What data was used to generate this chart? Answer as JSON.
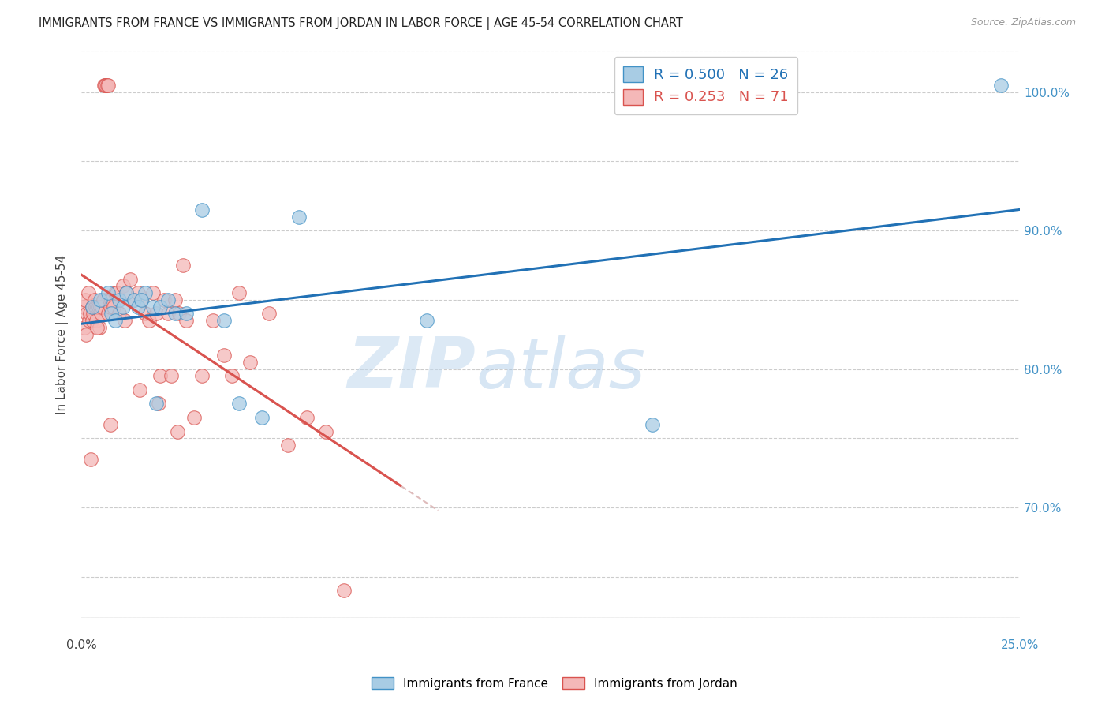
{
  "title": "IMMIGRANTS FROM FRANCE VS IMMIGRANTS FROM JORDAN IN LABOR FORCE | AGE 45-54 CORRELATION CHART",
  "source": "Source: ZipAtlas.com",
  "ylabel": "In Labor Force | Age 45-54",
  "legend_france": "R = 0.500   N = 26",
  "legend_jordan": "R = 0.253   N = 71",
  "legend_label_france": "Immigrants from France",
  "legend_label_jordan": "Immigrants from Jordan",
  "france_color": "#a8cce4",
  "jordan_color": "#f4b8b8",
  "france_edge": "#4292c6",
  "jordan_edge": "#d9534f",
  "france_trend_color": "#2171b5",
  "jordan_trend_color": "#d9534f",
  "dashed_color": "#d9b0b0",
  "watermark_color": "#cce0f0",
  "right_tick_color": "#4292c6",
  "xlim": [
    0,
    25
  ],
  "ylim": [
    62,
    103
  ],
  "france_x": [
    0.3,
    0.5,
    0.7,
    0.8,
    0.9,
    1.0,
    1.1,
    1.2,
    1.4,
    1.5,
    1.7,
    1.9,
    2.1,
    2.3,
    2.5,
    3.2,
    4.2,
    4.8,
    5.8,
    9.2,
    15.2,
    24.5,
    2.8,
    3.8,
    1.6,
    2.0
  ],
  "france_y": [
    84.5,
    85.0,
    85.5,
    84.0,
    83.5,
    85.0,
    84.5,
    85.5,
    85.0,
    84.5,
    85.5,
    84.5,
    84.5,
    85.0,
    84.0,
    91.5,
    77.5,
    76.5,
    91.0,
    83.5,
    76.0,
    100.5,
    84.0,
    83.5,
    85.0,
    77.5
  ],
  "jordan_x": [
    0.05,
    0.08,
    0.1,
    0.15,
    0.18,
    0.2,
    0.22,
    0.25,
    0.28,
    0.3,
    0.32,
    0.35,
    0.38,
    0.4,
    0.42,
    0.45,
    0.48,
    0.5,
    0.52,
    0.55,
    0.58,
    0.6,
    0.62,
    0.65,
    0.68,
    0.7,
    0.72,
    0.75,
    0.78,
    0.8,
    0.85,
    0.9,
    0.95,
    1.0,
    1.1,
    1.2,
    1.3,
    1.4,
    1.5,
    1.6,
    1.7,
    1.8,
    1.9,
    2.0,
    2.1,
    2.2,
    2.3,
    2.4,
    2.5,
    2.6,
    2.7,
    2.8,
    3.0,
    3.2,
    3.5,
    3.8,
    4.0,
    4.2,
    4.5,
    5.0,
    5.5,
    6.0,
    6.5,
    7.0,
    0.12,
    0.42,
    0.78,
    1.15,
    1.55,
    2.05,
    2.55
  ],
  "jordan_y": [
    84.5,
    83.0,
    85.0,
    84.0,
    85.5,
    83.5,
    84.0,
    73.5,
    83.5,
    84.5,
    84.0,
    85.0,
    84.5,
    83.5,
    84.5,
    84.5,
    83.0,
    84.5,
    84.0,
    84.5,
    85.0,
    100.5,
    100.5,
    100.5,
    100.5,
    100.5,
    84.0,
    85.0,
    84.5,
    85.0,
    84.5,
    85.5,
    85.5,
    84.0,
    86.0,
    85.5,
    86.5,
    85.0,
    85.5,
    85.0,
    84.0,
    83.5,
    85.5,
    84.0,
    79.5,
    85.0,
    84.0,
    79.5,
    85.0,
    84.0,
    87.5,
    83.5,
    76.5,
    79.5,
    83.5,
    81.0,
    79.5,
    85.5,
    80.5,
    84.0,
    74.5,
    76.5,
    75.5,
    64.0,
    82.5,
    83.0,
    76.0,
    83.5,
    78.5,
    77.5,
    75.5
  ],
  "yticks_right": [
    70,
    80,
    90,
    100
  ],
  "ytick_labels_right": [
    "70.0%",
    "80.0%",
    "90.0%",
    "100.0%"
  ]
}
